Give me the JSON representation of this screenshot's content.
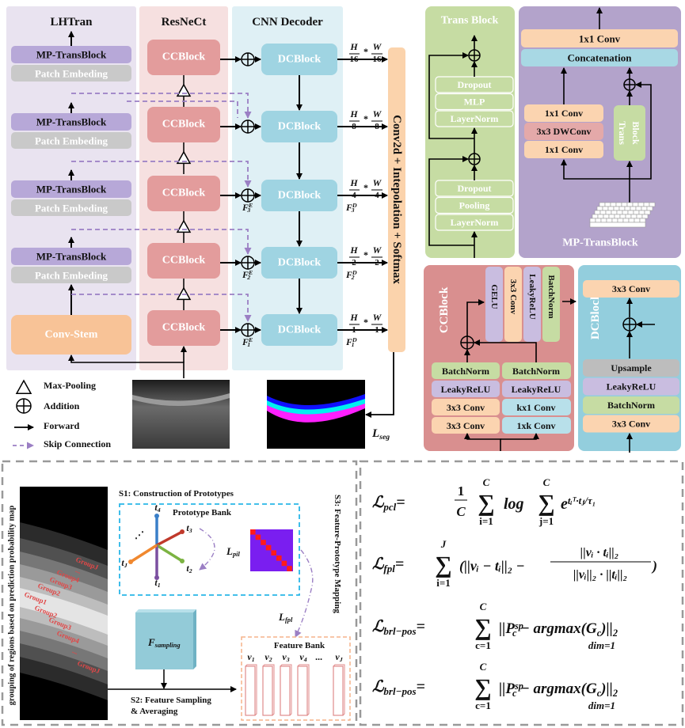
{
  "encoder": {
    "lhtran_title": "LHTran",
    "resnect_title": "ResNeCt",
    "decoder_title": "CNN Decoder",
    "mp_transblock": "MP-TransBlock",
    "patch_embedding": "Patch Embeding",
    "conv_stem": "Conv-Stem",
    "ccblock": "CCBlock",
    "dcblock": "DCBlock",
    "head": "Conv2d + Intepolation + Softmax",
    "scales": [
      {
        "h": "H",
        "hd": "16",
        "star": "*",
        "w": "W",
        "wd": "16"
      },
      {
        "h": "H",
        "hd": "8",
        "star": "*",
        "w": "W",
        "wd": "8"
      },
      {
        "h": "H",
        "hd": "4",
        "star": "*",
        "w": "W",
        "wd": "4"
      },
      {
        "h": "H",
        "hd": "2",
        "star": "*",
        "w": "W",
        "wd": "2"
      },
      {
        "h": "H",
        "hd": "1",
        "star": "*",
        "w": "W",
        "wd": "1"
      }
    ],
    "fe_labels": [
      {
        "base": "F",
        "sup": "E",
        "sub": "3"
      },
      {
        "base": "F",
        "sup": "E",
        "sub": "2"
      },
      {
        "base": "F",
        "sup": "E",
        "sub": "1"
      }
    ],
    "fd_labels": [
      {
        "base": "F",
        "sup": "D",
        "sub": "3"
      },
      {
        "base": "F",
        "sup": "D",
        "sub": "2"
      },
      {
        "base": "F",
        "sup": "D",
        "sub": "1"
      }
    ],
    "loss_seg": {
      "base": "L",
      "sub": "seg"
    }
  },
  "legend": {
    "max_pooling": "Max-Pooling",
    "addition": "Addition",
    "forward": "Forward",
    "skip_connection": "Skip Connection"
  },
  "trans_block": {
    "title": "Trans Block",
    "upper": [
      "Dropout",
      "MLP",
      "LayerNorm"
    ],
    "lower": [
      "Dropout",
      "Pooling",
      "LayerNorm"
    ]
  },
  "mp_transblock": {
    "title": "MP-TransBlock",
    "top_conv": "1x1 Conv",
    "concat": "Concatenation",
    "left_stack": [
      "1x1 Conv",
      "3x3 DWConv",
      "1x1 Conv"
    ],
    "trans_block_line1": "Trans",
    "trans_block_line2": "Block"
  },
  "ccblock": {
    "title": "CCBlock",
    "top_stack": [
      "GELU",
      "3x3 Conv",
      "LeakyReLU",
      "BatchNorm"
    ],
    "left_stack": [
      "BatchNorm",
      "LeakyReLU",
      "3x3 Conv",
      "3x3 Conv"
    ],
    "right_stack": [
      "BatchNorm",
      "LeakyReLU",
      "kx1 Conv",
      "1xk Conv"
    ]
  },
  "dcblock": {
    "title": "DCBlock",
    "top_conv": "3x3 Conv",
    "stack": [
      "Upsample",
      "LeakyReLU",
      "BatchNorm",
      "3x3 Conv"
    ]
  },
  "prototype": {
    "side_label": "grouping of regions based on prediction probability map",
    "groups": [
      "GroupJ",
      "...",
      "Group4",
      "Group3",
      "Group2",
      "Group1",
      "Group2",
      "Group3",
      "Group4",
      "...",
      "GroupJ"
    ],
    "s1_title": "S1: Construction of Prototypes",
    "bank_title": "Prototype Bank",
    "vectors": [
      {
        "base": "t",
        "sub": "4"
      },
      {
        "base": "t",
        "sub": "3"
      },
      {
        "base": "t",
        "sub": "2"
      },
      {
        "base": "t",
        "sub": "1"
      },
      {
        "base": "t",
        "sub": "J"
      }
    ],
    "ellipsis": "⋰",
    "l_pil": {
      "base": "L",
      "sub": "pil"
    },
    "l_fpl": {
      "base": "L",
      "sub": "fpl"
    },
    "s3_title": "S3: Feature-Prototype Mapping",
    "f_sampling": {
      "base": "F",
      "sub": "sampling"
    },
    "s2_line1": "S2: Feature Sampling",
    "s2_line2": "& Averaging",
    "feature_bank_title": "Feature Bank",
    "features": [
      {
        "base": "v",
        "sub": "1"
      },
      {
        "base": "v",
        "sub": "2"
      },
      {
        "base": "v",
        "sub": "3"
      },
      {
        "base": "v",
        "sub": "4"
      },
      {
        "base": "...",
        "sub": ""
      },
      {
        "base": "v",
        "sub": "J"
      }
    ]
  },
  "equations": {
    "sum": "∑",
    "pcl": {
      "L": "ℒ",
      "sub": "pcl",
      "eq": "=",
      "num": "1",
      "den": "C",
      "s1_top": "C",
      "s1_bot": "i=1",
      "log": "log",
      "s2_top": "C",
      "s2_bot": "j=1",
      "e": "e",
      "exp": "tᵢᵀ·tⱼ/τ₁"
    },
    "fpl": {
      "L": "ℒ",
      "sub": "fpl",
      "eq": "=",
      "s_top": "J",
      "s_bot": "i=1",
      "left": "(||vᵢ − tᵢ||₂ −",
      "num": "||vᵢ · tᵢ||₂",
      "den": "||vᵢ||₂ · ||tᵢ||₂",
      "right": ")"
    },
    "brl1": {
      "L": "ℒ",
      "sub": "brl−pos",
      "eq": "=",
      "s_top": "C",
      "s_bot": "c=1",
      "body": "||P",
      "p_sub": "c",
      "p_sup": "sp",
      "minus": " − argmax(G",
      "g_sub": "c",
      "tail": ")||",
      "tail_sub": "2",
      "dim": "dim=1"
    },
    "brl2": {
      "L": "ℒ",
      "sub": "brl−pos",
      "eq": "=",
      "s_top": "C",
      "s_bot": "c=1",
      "body": "||P",
      "p_sub": "c",
      "p_sup": "sp",
      "minus": " − argmax(G",
      "g_sub": "c",
      "tail": ")||",
      "tail_sub": "2",
      "dim": "dim=1"
    }
  },
  "colors": {
    "lhtran_bg": "#e9e3f0",
    "resnect_bg": "#f6e0e0",
    "decoder_bg": "#dff0f5",
    "mp": "#b7a8d8",
    "patch": "#c9c9c9",
    "conv_stem": "#f8c397",
    "ccblock": "#e39c9c",
    "dcblock": "#9fd4e2",
    "head": "#fbd3ac",
    "trans_panel": "#c6dca3",
    "mp_panel": "#b3a3cb",
    "cc_panel": "#d98f8f",
    "dc_panel": "#93cedd",
    "conv": "#fbd4b0",
    "norm": "#c6dca3",
    "relu": "#c9bde0",
    "concat": "#a8d8e4",
    "skip": "#9b7fc4",
    "matrix": "#7a1ef0",
    "matrix_diag": "#ff1a1a"
  }
}
